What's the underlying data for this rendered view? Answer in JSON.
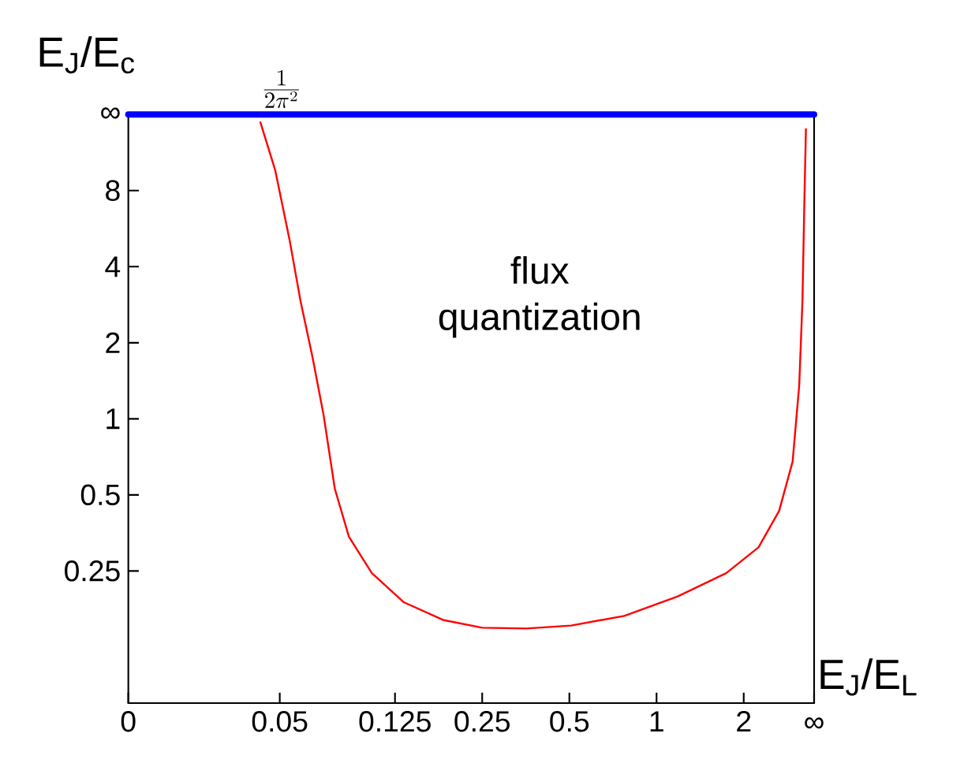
{
  "chart_data": {
    "type": "line",
    "log": "xy",
    "xlabel": "E$_{J}$/E$_{L}$",
    "ylabel": "E$_{J}$/E$_{c}$",
    "xlim": [
      0.015,
      3.5
    ],
    "ylim": [
      0.075,
      16
    ],
    "xticks": [
      {
        "value": 0.015,
        "label": "0"
      },
      0.05,
      0.125,
      0.25,
      0.5,
      1,
      2,
      {
        "value": 3.5,
        "label": "∞"
      }
    ],
    "yticks": [
      0.25,
      0.5,
      1,
      2,
      4,
      8,
      {
        "value": 16,
        "label": "∞"
      }
    ],
    "series": [
      {
        "color": "#0000ff",
        "x": [
          0.015,
          3.5
        ],
        "values": [
          16,
          16
        ]
      },
      {
        "color": "#ff0000",
        "x": [
          0.0428,
          0.0482,
          0.054,
          0.059,
          0.0647,
          0.0708,
          0.0775,
          0.0867,
          0.104,
          0.134,
          0.183,
          0.25,
          0.355,
          0.507,
          0.774,
          1.18,
          1.74,
          2.25,
          2.65,
          2.95,
          3.11,
          3.19,
          3.24,
          3.28
        ],
        "values": [
          15,
          9.65,
          5.14,
          2.92,
          1.78,
          1.04,
          0.528,
          0.341,
          0.245,
          0.188,
          0.16,
          0.149,
          0.148,
          0.152,
          0.166,
          0.198,
          0.245,
          0.31,
          0.432,
          0.677,
          1.36,
          2.92,
          7.35,
          14.1
        ]
      }
    ],
    "annotations": [
      "flux quantization",
      {
        "text": "\\frac{1}{2\\pi^2}",
        "x": 0.0507,
        "y": 16
      }
    ]
  }
}
